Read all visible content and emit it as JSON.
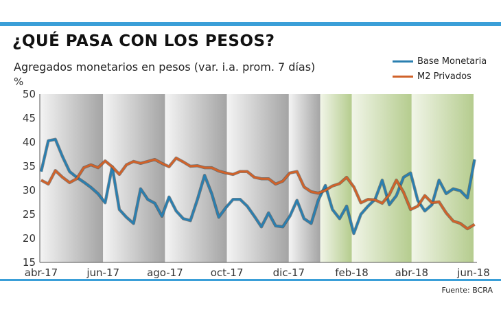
{
  "header": {
    "title": "¿QUÉ PASA CON LOS PESOS?",
    "subtitle": "Agregados monetarios en pesos (var. i.a. prom. 7 días)",
    "source": "Fuente: BCRA"
  },
  "colors": {
    "accent": "#3a9fd8",
    "base_monetaria": "#2a7fb0",
    "m2_privados": "#d0622a",
    "shade_grey": "#a8a8a8",
    "shade_green": "#b9cf94"
  },
  "chart_data": {
    "type": "line",
    "title": "Agregados monetarios en pesos (var. i.a. prom. 7 días)",
    "ylabel": "%",
    "xlabel": "",
    "ylim": [
      15,
      50
    ],
    "yticks": [
      15,
      20,
      25,
      30,
      35,
      40,
      45,
      50
    ],
    "xlim": [
      "2017-04-01",
      "2018-06-01"
    ],
    "xticks": [
      {
        "date": "2017-04-01",
        "label": "abr-17"
      },
      {
        "date": "2017-06-01",
        "label": "jun-17"
      },
      {
        "date": "2017-08-01",
        "label": "ago-17"
      },
      {
        "date": "2017-10-01",
        "label": "oct-17"
      },
      {
        "date": "2017-12-01",
        "label": "dic-17"
      },
      {
        "date": "2018-02-01",
        "label": "feb-18"
      },
      {
        "date": "2018-04-01",
        "label": "abr-18"
      },
      {
        "date": "2018-06-01",
        "label": "jun-18"
      }
    ],
    "shaded_periods": [
      {
        "from": "2017-04-01",
        "to": "2017-06-01",
        "color": "grey"
      },
      {
        "from": "2017-06-01",
        "to": "2017-08-01",
        "color": "grey"
      },
      {
        "from": "2017-08-01",
        "to": "2017-10-01",
        "color": "grey"
      },
      {
        "from": "2017-10-01",
        "to": "2017-12-01",
        "color": "grey"
      },
      {
        "from": "2017-12-01",
        "to": "2018-01-01",
        "color": "grey"
      },
      {
        "from": "2018-01-01",
        "to": "2018-02-01",
        "color": "green"
      },
      {
        "from": "2018-02-01",
        "to": "2018-04-01",
        "color": "green"
      },
      {
        "from": "2018-04-01",
        "to": "2018-06-01",
        "color": "green"
      }
    ],
    "grid": false,
    "legend": "top-right",
    "x": [
      "2017-04-01",
      "2017-04-08",
      "2017-04-15",
      "2017-04-22",
      "2017-04-29",
      "2017-05-06",
      "2017-05-13",
      "2017-05-20",
      "2017-05-27",
      "2017-06-03",
      "2017-06-10",
      "2017-06-17",
      "2017-06-24",
      "2017-07-01",
      "2017-07-08",
      "2017-07-15",
      "2017-07-22",
      "2017-07-29",
      "2017-08-05",
      "2017-08-12",
      "2017-08-19",
      "2017-08-26",
      "2017-09-02",
      "2017-09-09",
      "2017-09-16",
      "2017-09-23",
      "2017-09-30",
      "2017-10-07",
      "2017-10-14",
      "2017-10-21",
      "2017-10-28",
      "2017-11-04",
      "2017-11-11",
      "2017-11-18",
      "2017-11-25",
      "2017-12-02",
      "2017-12-09",
      "2017-12-16",
      "2017-12-23",
      "2017-12-30",
      "2018-01-06",
      "2018-01-13",
      "2018-01-20",
      "2018-01-27",
      "2018-02-03",
      "2018-02-10",
      "2018-02-17",
      "2018-02-24",
      "2018-03-03",
      "2018-03-10",
      "2018-03-17",
      "2018-03-24",
      "2018-03-31",
      "2018-04-07",
      "2018-04-14",
      "2018-04-21",
      "2018-04-28",
      "2018-05-05",
      "2018-05-12",
      "2018-05-19",
      "2018-05-26",
      "2018-06-02"
    ],
    "series": [
      {
        "name": "Base Monetaria",
        "color": "#2a7fb0",
        "values": [
          33.9,
          40.3,
          40.6,
          37.0,
          33.9,
          32.7,
          31.7,
          30.6,
          29.3,
          27.4,
          34.9,
          26.0,
          24.4,
          23.1,
          30.3,
          28.1,
          27.3,
          24.6,
          28.6,
          25.7,
          24.1,
          23.7,
          28.1,
          33.1,
          29.3,
          24.4,
          26.4,
          28.1,
          28.1,
          26.7,
          24.6,
          22.4,
          25.3,
          22.6,
          22.4,
          24.6,
          27.9,
          24.1,
          23.1,
          27.9,
          31.0,
          26.0,
          24.1,
          26.7,
          21.0,
          25.0,
          26.7,
          28.1,
          32.1,
          27.0,
          28.9,
          32.7,
          33.6,
          27.9,
          25.7,
          27.0,
          32.1,
          29.3,
          30.3,
          29.9,
          28.4,
          36.4
        ]
      },
      {
        "name": "M2 Privados",
        "color": "#d0622a",
        "values": [
          32.1,
          31.3,
          34.1,
          32.7,
          31.6,
          32.4,
          34.7,
          35.3,
          34.7,
          36.1,
          34.9,
          33.3,
          35.3,
          36.0,
          35.6,
          36.0,
          36.4,
          35.6,
          34.9,
          36.7,
          35.9,
          35.0,
          35.1,
          34.7,
          34.7,
          34.0,
          33.6,
          33.3,
          33.9,
          33.9,
          32.7,
          32.4,
          32.4,
          31.3,
          31.9,
          33.6,
          33.9,
          30.7,
          29.7,
          29.4,
          30.0,
          30.9,
          31.4,
          32.7,
          30.7,
          27.4,
          28.1,
          28.0,
          27.3,
          29.1,
          32.1,
          29.6,
          26.0,
          26.7,
          28.9,
          27.4,
          27.6,
          25.3,
          23.6,
          23.1,
          22.0,
          22.9
        ]
      }
    ]
  }
}
